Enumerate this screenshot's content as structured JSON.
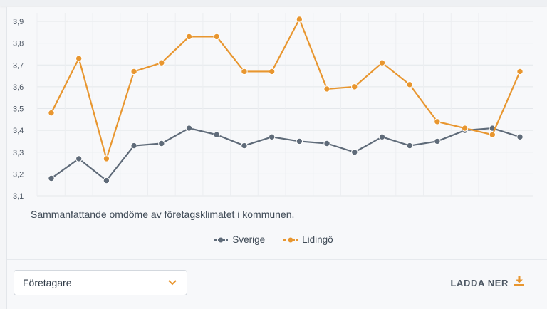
{
  "caption": "Sammanfattande omdöme av företagsklimatet i kommunen.",
  "legend": {
    "items": [
      {
        "label": "Sverige",
        "color": "#5f6b79"
      },
      {
        "label": "Lidingö",
        "color": "#e8962f"
      }
    ]
  },
  "filter": {
    "selected": "Företagare"
  },
  "download": {
    "label": "LADDA NER",
    "icon": "download-icon",
    "color": "#e8962f"
  },
  "chart_data": {
    "type": "line",
    "ylim": [
      3.1,
      3.9
    ],
    "yticks": [
      "3,1",
      "3,2",
      "3,3",
      "3,4",
      "3,5",
      "3,6",
      "3,7",
      "3,8",
      "3,9"
    ],
    "grid": true,
    "legend_position": "bottom",
    "series": [
      {
        "name": "Sverige",
        "color": "#5f6b79",
        "values": [
          3.18,
          3.27,
          3.17,
          3.33,
          3.34,
          3.41,
          3.38,
          3.33,
          3.37,
          3.35,
          3.34,
          3.3,
          3.37,
          3.33,
          3.35,
          3.4,
          3.41,
          3.37
        ]
      },
      {
        "name": "Lidingö",
        "color": "#e8962f",
        "values": [
          3.48,
          3.73,
          3.27,
          3.67,
          3.71,
          3.83,
          3.83,
          3.67,
          3.67,
          3.91,
          3.59,
          3.6,
          3.71,
          3.61,
          3.44,
          3.41,
          3.38,
          3.67
        ]
      }
    ]
  }
}
